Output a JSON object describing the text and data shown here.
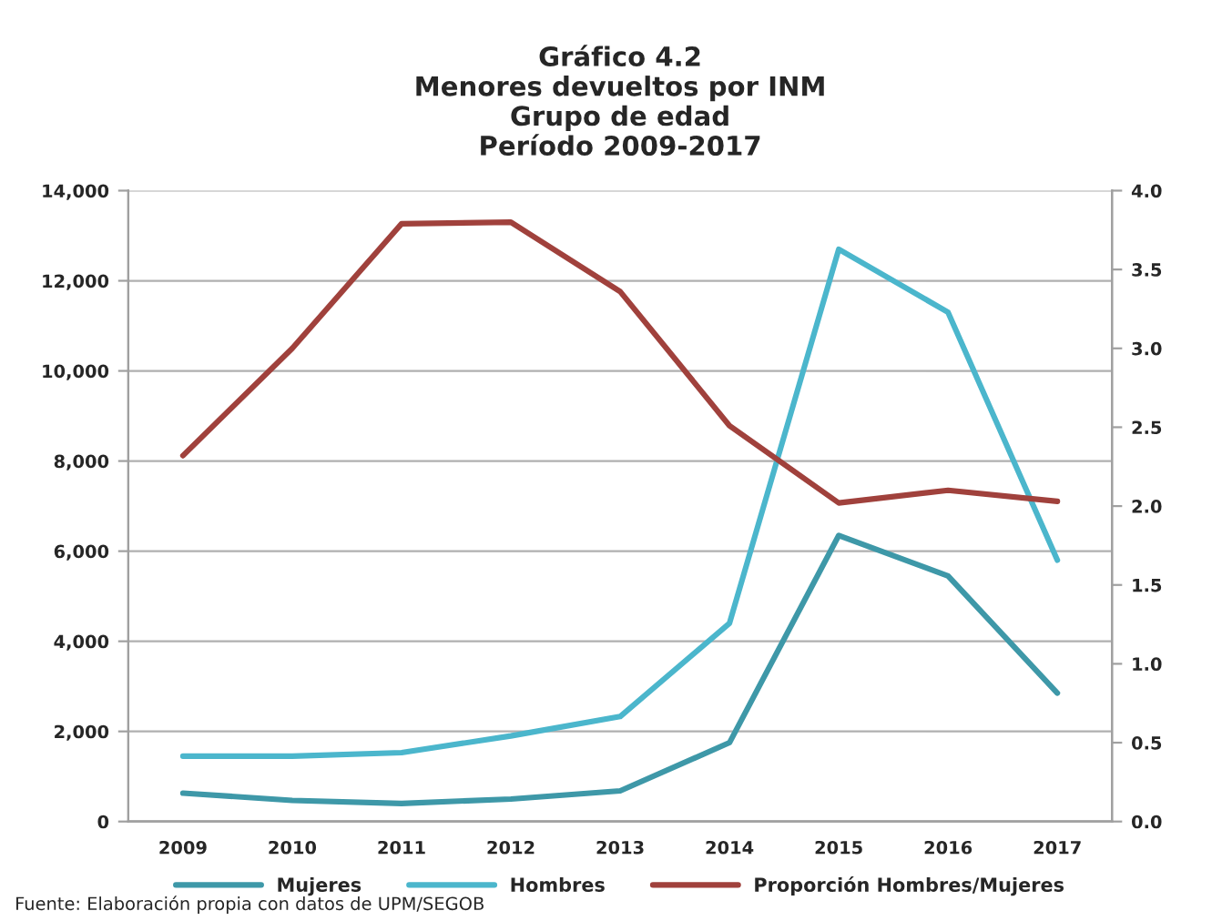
{
  "chart_data": {
    "type": "line",
    "title": "Gráfico 4.2\nMenores devueltos por INM\nGrupo de edad\nPeríodo 2009-2017",
    "categories": [
      "2009",
      "2010",
      "2011",
      "2012",
      "2013",
      "2014",
      "2015",
      "2016",
      "2017"
    ],
    "series": [
      {
        "name": "Mujeres",
        "color": "#3e98a8",
        "values": [
          630,
          470,
          400,
          500,
          680,
          1750,
          6350,
          5450,
          2850
        ]
      },
      {
        "name": "Hombres",
        "color": "#4bb6cc",
        "values": [
          1450,
          1450,
          1530,
          1900,
          2330,
          4400,
          12700,
          11300,
          5800
        ]
      },
      {
        "name": "Proporción Hombres/Mujeres",
        "color": "#a0413c",
        "axis": "y2",
        "values": [
          2.32,
          3.0,
          3.79,
          3.8,
          3.36,
          2.51,
          2.02,
          2.1,
          2.03
        ]
      }
    ],
    "ylim": [
      0,
      14000
    ],
    "yticks": [
      {
        "value": 0,
        "label": "0"
      },
      {
        "value": 2000,
        "label": "2,000"
      },
      {
        "value": 4000,
        "label": "4,000"
      },
      {
        "value": 6000,
        "label": "6,000"
      },
      {
        "value": 8000,
        "label": "8,000"
      },
      {
        "value": 10000,
        "label": "10,000"
      },
      {
        "value": 12000,
        "label": "12,000"
      },
      {
        "value": 14000,
        "label": "14,000"
      }
    ],
    "y2lim": [
      0,
      4
    ],
    "y2ticks": [
      {
        "value": 0,
        "label": "0.0"
      },
      {
        "value": 0.5,
        "label": "0.5"
      },
      {
        "value": 1,
        "label": "1.0"
      },
      {
        "value": 1.5,
        "label": "1.5"
      },
      {
        "value": 2,
        "label": "2.0"
      },
      {
        "value": 2.5,
        "label": "2.5"
      },
      {
        "value": 3,
        "label": "3.0"
      },
      {
        "value": 3.5,
        "label": "3.5"
      },
      {
        "value": 4,
        "label": "4.0"
      }
    ],
    "grid": "y",
    "legend": "bottom",
    "annotations": [
      "Fuente: Elaboración propia con datos de UPM/SEGOB"
    ]
  }
}
